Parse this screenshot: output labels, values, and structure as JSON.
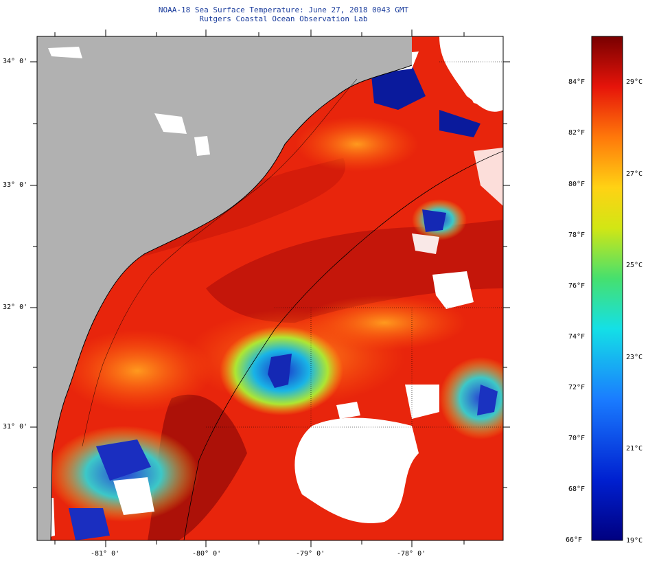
{
  "header": {
    "title": "NOAA-18 Sea Surface Temperature:  June 27, 2018 0043 GMT",
    "subtitle": "Rutgers Coastal Ocean Observation Lab"
  },
  "map": {
    "lat_labels": [
      "34° 0'",
      "33° 0'",
      "32° 0'",
      "31° 0'"
    ],
    "lon_labels": [
      "-81° 0'",
      "-80° 0'",
      "-79° 0'",
      "-78° 0'"
    ],
    "colors": {
      "land": "#b1b1b1",
      "cloud": "#ffffff",
      "warm": "#e8250c",
      "hot": "#a50f08",
      "cool": "#1432c8"
    }
  },
  "colorbar": {
    "fahrenheit_labels": [
      "84°F",
      "82°F",
      "80°F",
      "78°F",
      "76°F",
      "74°F",
      "72°F",
      "70°F",
      "68°F",
      "66°F"
    ],
    "celsius_labels": [
      "29°C",
      "27°C",
      "25°C",
      "23°C",
      "21°C",
      "19°C"
    ]
  }
}
